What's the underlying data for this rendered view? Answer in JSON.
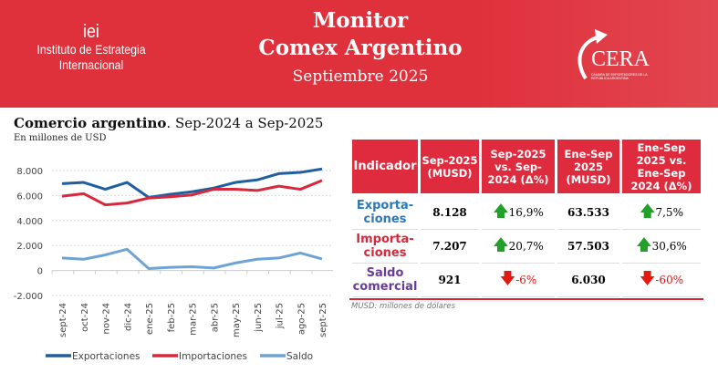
{
  "header": {
    "org_short": "iei",
    "org_line1": "Instituto de Estrategia",
    "org_line2": "Internacional",
    "title_line1": "Monitor",
    "title_line2": "Comex Argentino",
    "subtitle": "Septiembre 2025",
    "logo_text": "CERA",
    "logo_sub": "CÁMARA DE EXPORTADORES DE LA REPÚBLICA ARGENTINA",
    "bg_color": "#df313c"
  },
  "chart_title_bold": "Comercio argentino",
  "chart_title_rest": ". Sep-2024 a Sep-2025",
  "chart_unit": "En millones de USD",
  "chart_data": {
    "type": "line",
    "categories": [
      "sept-24",
      "oct-24",
      "nov-24",
      "dic-24",
      "ene-25",
      "feb-25",
      "mar-25",
      "abr-25",
      "may-25",
      "jun-25",
      "jul-25",
      "ago-25",
      "sept-25"
    ],
    "ylim": [
      -2000,
      8000
    ],
    "yticks": [
      "-2.000",
      "0",
      "2.000",
      "4.000",
      "6.000",
      "8.000"
    ],
    "ytick_values": [
      -2000,
      0,
      2000,
      4000,
      6000,
      8000
    ],
    "grid": true,
    "legend": "bottom",
    "series": [
      {
        "name": "Exportaciones",
        "color": "#1f5fa0",
        "values": [
          6950,
          7050,
          6500,
          7050,
          5850,
          6100,
          6300,
          6600,
          7050,
          7250,
          7750,
          7850,
          8128
        ]
      },
      {
        "name": "Importaciones",
        "color": "#d8283c",
        "values": [
          5950,
          6150,
          5250,
          5400,
          5800,
          5900,
          6050,
          6500,
          6500,
          6400,
          6750,
          6500,
          7207
        ]
      },
      {
        "name": "Saldo",
        "color": "#6fa3d3",
        "values": [
          1000,
          900,
          1250,
          1700,
          150,
          250,
          300,
          200,
          600,
          900,
          1000,
          1400,
          921
        ]
      }
    ]
  },
  "table": {
    "headers": [
      "Indicador",
      "Sep-2025 (MUSD)",
      "Sep-2025 vs. Sep-2024 (Δ%)",
      "Ene-Sep 2025 (MUSD)",
      "Ene-Sep 2025 vs. Ene-Sep 2024 (Δ%)"
    ],
    "rows": [
      {
        "label": "Exporta-ciones",
        "color": "#2a78b8",
        "sep": "8.128",
        "var": "16,9%",
        "var_dir": "up",
        "ytd": "63.533",
        "ytd_var": "7,5%",
        "ytd_dir": "up"
      },
      {
        "label": "Importa-ciones",
        "color": "#d8283c",
        "sep": "7.207",
        "var": "20,7%",
        "var_dir": "up",
        "ytd": "57.503",
        "ytd_var": "30,6%",
        "ytd_dir": "up"
      },
      {
        "label": "Saldo comercial",
        "color": "#6a3c9a",
        "sep": "921",
        "var": "-6%",
        "var_dir": "down",
        "ytd": "6.030",
        "ytd_var": "-60%",
        "ytd_dir": "down"
      }
    ],
    "footnote": "MUSD: millones de dólares"
  }
}
